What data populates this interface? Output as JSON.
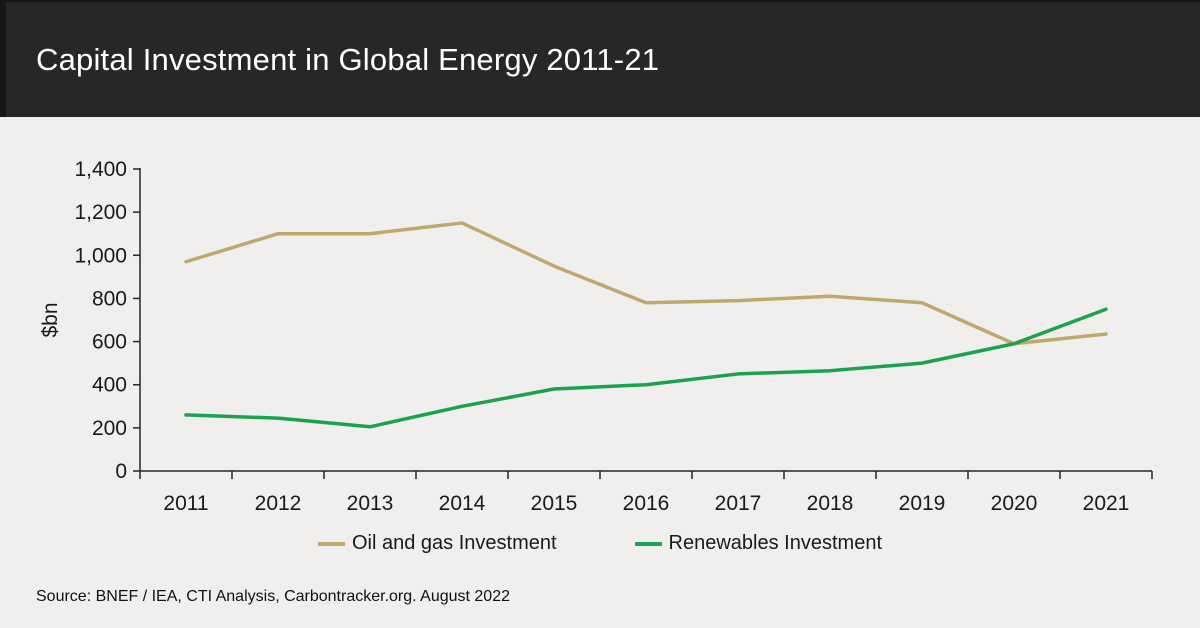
{
  "header": {
    "title": "Capital Investment in Global Energy 2011-21"
  },
  "chart_data": {
    "type": "line",
    "categories": [
      "2011",
      "2012",
      "2013",
      "2014",
      "2015",
      "2016",
      "2017",
      "2018",
      "2019",
      "2020",
      "2021"
    ],
    "series": [
      {
        "name": "Oil and gas Investment",
        "color": "#bfa96a",
        "values": [
          970,
          1100,
          1100,
          1150,
          950,
          780,
          790,
          810,
          780,
          590,
          635
        ]
      },
      {
        "name": "Renewables Investment",
        "color": "#1aa34c",
        "values": [
          260,
          245,
          205,
          300,
          380,
          400,
          450,
          465,
          500,
          590,
          750
        ]
      }
    ],
    "title": "Capital Investment in Global Energy 2011-21",
    "xlabel": "",
    "ylabel": "$bn",
    "ylim": [
      0,
      1400
    ],
    "ytick_step": 200,
    "grid": false,
    "legend_position": "bottom"
  },
  "footer": {
    "source": "Source: BNEF / IEA, CTI Analysis, Carbontracker.org. August 2022"
  },
  "colors": {
    "header_bg": "#292627",
    "page_bg": "#f0efee",
    "axis_text": "#1a1a1a",
    "axis_line": "#262626"
  }
}
